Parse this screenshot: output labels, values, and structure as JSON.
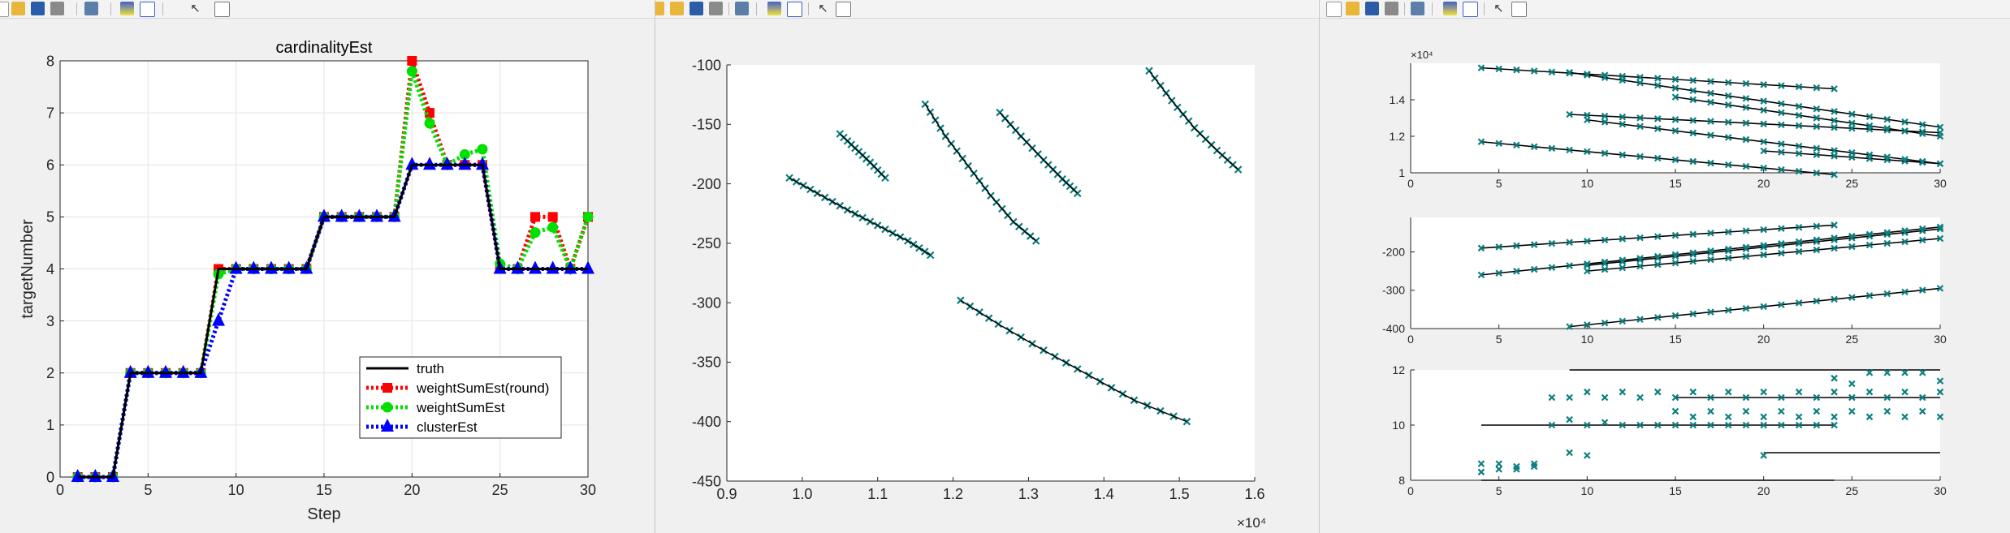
{
  "toolbar": {
    "icons": [
      "new-file-icon",
      "open-folder-icon",
      "save-icon",
      "print-icon",
      "link-plot-icon",
      "insert-colorbar-icon",
      "insert-legend-icon",
      "pointer-icon",
      "property-inspector-icon"
    ]
  },
  "colors": {
    "truth": "#000000",
    "weight_round": "#ff0000",
    "weight": "#00e000",
    "cluster": "#0000ff",
    "marker": "#0c7f7f",
    "axes_bg": "#ffffff",
    "figure_bg": "#f0f0f0"
  },
  "chart_data": [
    {
      "type": "line",
      "title": "cardinalityEst",
      "xlabel": "Step",
      "ylabel": "targetNumber",
      "xlim": [
        0,
        30
      ],
      "ylim": [
        0,
        8
      ],
      "xticks": [
        0,
        5,
        10,
        15,
        20,
        25,
        30
      ],
      "yticks": [
        0,
        1,
        2,
        3,
        4,
        5,
        6,
        7,
        8
      ],
      "grid": true,
      "legend_position": "lower-right",
      "x": [
        1,
        2,
        3,
        4,
        5,
        6,
        7,
        8,
        9,
        10,
        11,
        12,
        13,
        14,
        15,
        16,
        17,
        18,
        19,
        20,
        21,
        22,
        23,
        24,
        25,
        26,
        27,
        28,
        29,
        30
      ],
      "series": [
        {
          "name": "truth",
          "style": "solid",
          "values": [
            0,
            0,
            0,
            2,
            2,
            2,
            2,
            2,
            4,
            4,
            4,
            4,
            4,
            4,
            5,
            5,
            5,
            5,
            5,
            6,
            6,
            6,
            6,
            6,
            4,
            4,
            4,
            4,
            4,
            4
          ]
        },
        {
          "name": "weightSumEst(round)",
          "style": "dotted",
          "marker": "square",
          "values": [
            0,
            0,
            0,
            2,
            2,
            2,
            2,
            2,
            4,
            4,
            4,
            4,
            4,
            4,
            5,
            5,
            5,
            5,
            5,
            8,
            7,
            6,
            6,
            6,
            4,
            4,
            5,
            5,
            4,
            5
          ]
        },
        {
          "name": "weightSumEst",
          "style": "dotted",
          "marker": "circle",
          "values": [
            0,
            0,
            0,
            2,
            2,
            2,
            2,
            2,
            3.9,
            4,
            4,
            4,
            4,
            4,
            5,
            5,
            5,
            5,
            5,
            7.8,
            6.8,
            6,
            6.2,
            6.3,
            4.1,
            4,
            4.7,
            4.8,
            4,
            5
          ]
        },
        {
          "name": "clusterEst",
          "style": "dotted",
          "marker": "triangle",
          "values": [
            0,
            0,
            0,
            2,
            2,
            2,
            2,
            2,
            3,
            4,
            4,
            4,
            4,
            4,
            5,
            5,
            5,
            5,
            5,
            6,
            6,
            6,
            6,
            6,
            4,
            4,
            4,
            4,
            4,
            4
          ]
        }
      ]
    },
    {
      "type": "scatter",
      "title": "",
      "xlabel": "",
      "ylabel": "",
      "xlim": [
        0.9,
        1.6
      ],
      "ylim": [
        -450,
        -100
      ],
      "xticks": [
        0.9,
        1.0,
        1.1,
        1.2,
        1.3,
        1.4,
        1.5,
        1.6
      ],
      "yticks": [
        -100,
        -150,
        -200,
        -250,
        -300,
        -350,
        -400,
        -450
      ],
      "x_exponent": "×10⁴",
      "grid": false,
      "tracks": [
        {
          "x": [
            0.983,
            1.02,
            1.06,
            1.1,
            1.14,
            1.17
          ],
          "y": [
            -195,
            -208,
            -222,
            -235,
            -248,
            -260
          ]
        },
        {
          "x": [
            1.05,
            1.07,
            1.09,
            1.11
          ],
          "y": [
            -158,
            -170,
            -182,
            -195
          ]
        },
        {
          "x": [
            1.163,
            1.19,
            1.22,
            1.25,
            1.28,
            1.31
          ],
          "y": [
            -133,
            -160,
            -185,
            -210,
            -232,
            -248
          ]
        },
        {
          "x": [
            1.262,
            1.29,
            1.32,
            1.345,
            1.365
          ],
          "y": [
            -140,
            -160,
            -180,
            -196,
            -208
          ]
        },
        {
          "x": [
            1.46,
            1.49,
            1.52,
            1.55,
            1.578
          ],
          "y": [
            -105,
            -130,
            -153,
            -172,
            -188
          ]
        },
        {
          "x": [
            1.21,
            1.26,
            1.32,
            1.38,
            1.44,
            1.51
          ],
          "y": [
            -298,
            -318,
            -340,
            -361,
            -382,
            -400
          ]
        }
      ]
    },
    {
      "type": "scatter",
      "title": "",
      "xlabel": "",
      "ylabel": "",
      "xlim": [
        0,
        30
      ],
      "ylim": [
        1,
        1.6
      ],
      "xticks": [
        0,
        5,
        10,
        15,
        20,
        25,
        30
      ],
      "yticks": [
        1,
        1.2,
        1.4
      ],
      "y_exponent": "×10⁴",
      "lines": [
        {
          "x": [
            4,
            24
          ],
          "y": [
            1.575,
            1.46
          ]
        },
        {
          "x": [
            9,
            30
          ],
          "y": [
            1.55,
            1.25
          ]
        },
        {
          "x": [
            15,
            30
          ],
          "y": [
            1.415,
            1.2
          ]
        },
        {
          "x": [
            9,
            30
          ],
          "y": [
            1.32,
            1.22
          ]
        },
        {
          "x": [
            10,
            30
          ],
          "y": [
            1.29,
            1.05
          ]
        },
        {
          "x": [
            4,
            24
          ],
          "y": [
            1.17,
            0.99
          ]
        },
        {
          "x": [
            20,
            30
          ],
          "y": [
            1.12,
            1.05
          ]
        }
      ]
    },
    {
      "type": "scatter",
      "title": "",
      "xlabel": "",
      "ylabel": "",
      "xlim": [
        0,
        30
      ],
      "ylim": [
        -400,
        -110
      ],
      "xticks": [
        0,
        5,
        10,
        15,
        20,
        25,
        30
      ],
      "yticks": [
        -200,
        -300,
        -400
      ],
      "lines": [
        {
          "x": [
            4,
            24
          ],
          "y": [
            -190,
            -130
          ]
        },
        {
          "x": [
            4,
            30
          ],
          "y": [
            -260,
            -135
          ]
        },
        {
          "x": [
            10,
            30
          ],
          "y": [
            -235,
            -140
          ]
        },
        {
          "x": [
            10,
            30
          ],
          "y": [
            -250,
            -165
          ]
        },
        {
          "x": [
            9,
            30
          ],
          "y": [
            -395,
            -295
          ]
        }
      ]
    },
    {
      "type": "scatter",
      "title": "",
      "xlabel": "",
      "ylabel": "",
      "xlim": [
        0,
        30
      ],
      "ylim": [
        8,
        12
      ],
      "xticks": [
        0,
        5,
        10,
        15,
        20,
        25,
        30
      ],
      "yticks": [
        8,
        10,
        12
      ],
      "lines": [
        {
          "x": [
            9,
            30
          ],
          "y": [
            12,
            12
          ]
        },
        {
          "x": [
            15,
            30
          ],
          "y": [
            11,
            11
          ]
        },
        {
          "x": [
            4,
            24
          ],
          "y": [
            10,
            10
          ]
        },
        {
          "x": [
            20,
            30
          ],
          "y": [
            9,
            9
          ]
        },
        {
          "x": [
            4,
            24
          ],
          "y": [
            8,
            8
          ]
        }
      ],
      "points": [
        {
          "x": [
            4,
            5,
            6,
            7
          ],
          "y": [
            8.6,
            8.4,
            8.5,
            8.5
          ]
        },
        {
          "x": [
            4,
            5,
            6,
            7
          ],
          "y": [
            8.3,
            8.6,
            8.4,
            8.6
          ]
        },
        {
          "x": [
            8,
            9,
            10
          ],
          "y": [
            11.0,
            9.0,
            8.9
          ]
        },
        {
          "x": [
            8,
            9,
            10,
            11,
            12,
            13,
            14,
            15,
            16,
            17,
            18,
            19,
            20,
            21,
            22,
            23,
            24
          ],
          "y": [
            10.0,
            10.2,
            10.0,
            10.1,
            10.0,
            10.0,
            10.0,
            10.0,
            10.0,
            10.0,
            10.0,
            10.0,
            10.0,
            10.0,
            10.0,
            10.0,
            10.0
          ]
        },
        {
          "x": [
            9,
            10,
            11,
            12,
            13,
            14,
            15,
            16,
            17,
            18,
            19,
            20,
            21,
            22,
            23,
            24,
            25,
            26,
            27,
            28,
            29,
            30
          ],
          "y": [
            11.0,
            11.2,
            11.0,
            11.2,
            11.0,
            11.2,
            11.0,
            11.2,
            11.0,
            11.2,
            11.0,
            11.2,
            11.0,
            11.2,
            11.0,
            11.2,
            11.0,
            11.2,
            11.0,
            11.2,
            11.0,
            11.2
          ]
        },
        {
          "x": [
            15,
            16,
            17,
            18,
            19,
            20,
            21,
            22,
            23,
            24,
            25,
            26,
            27,
            28,
            29,
            30
          ],
          "y": [
            10.5,
            10.3,
            10.5,
            10.3,
            10.5,
            10.3,
            10.5,
            10.3,
            10.5,
            10.3,
            10.5,
            10.3,
            10.5,
            10.3,
            10.5,
            10.3
          ]
        },
        {
          "x": [
            24,
            25,
            26,
            27,
            28,
            29,
            30
          ],
          "y": [
            11.7,
            11.5,
            11.9,
            11.9,
            11.9,
            11.9,
            11.6
          ]
        },
        {
          "x": [
            20
          ],
          "y": [
            8.9
          ]
        }
      ]
    }
  ]
}
